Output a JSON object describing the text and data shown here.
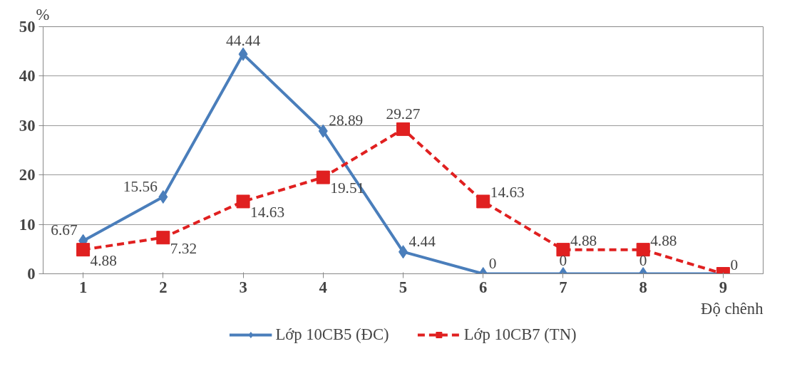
{
  "chart_data": {
    "type": "line",
    "xlabel": "Độ chênh",
    "ylabel": "%",
    "x": [
      1,
      2,
      3,
      4,
      5,
      6,
      7,
      8,
      9
    ],
    "xlim": [
      0.5,
      9.5
    ],
    "xticks": [
      1,
      2,
      3,
      4,
      5,
      6,
      7,
      8,
      9
    ],
    "ylim": [
      0,
      50
    ],
    "yticks": [
      0,
      10,
      20,
      30,
      40,
      50
    ],
    "grid": "y",
    "legend": "bottom",
    "series": [
      {
        "name": "Lớp 10CB5 (ĐC)",
        "color": "#4a7ebb",
        "marker": "diamond",
        "line_style": "solid",
        "values": [
          6.67,
          15.56,
          44.44,
          28.89,
          4.44,
          0,
          0,
          0,
          0
        ],
        "value_labels": [
          "6.67",
          "15.56",
          "44.44",
          "28.89",
          "4.44",
          "0",
          "0",
          "0",
          null
        ]
      },
      {
        "name": "Lớp 10CB7 (TN)",
        "color": "#e02020",
        "marker": "square",
        "line_style": "dashed",
        "values": [
          4.88,
          7.32,
          14.63,
          19.51,
          29.27,
          14.63,
          4.88,
          4.88,
          0
        ],
        "value_labels": [
          "4.88",
          "7.32",
          "14.63",
          "19.51",
          "29.27",
          "14.63",
          "4.88",
          "4.88",
          "0"
        ]
      }
    ]
  }
}
